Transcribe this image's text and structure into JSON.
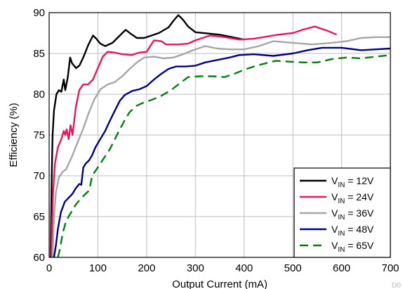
{
  "chart_data": {
    "type": "line",
    "title": "",
    "xlabel": "Output Current (mA)",
    "ylabel": "Efficiency (%)",
    "xlim": [
      0,
      700
    ],
    "ylim": [
      60,
      90
    ],
    "xticks": [
      0,
      100,
      200,
      300,
      400,
      500,
      600,
      700
    ],
    "yticks": [
      60,
      65,
      70,
      75,
      80,
      85,
      90
    ],
    "grid": true,
    "legend_position": "bottom-right",
    "watermark": "D0",
    "series": [
      {
        "name": "VIN = 12V",
        "legend_main": "V",
        "legend_sub": "IN",
        "legend_rest": " = 12V",
        "color": "#000000",
        "dash": "solid",
        "points": [
          [
            3,
            60
          ],
          [
            5,
            69
          ],
          [
            7,
            75
          ],
          [
            10,
            78
          ],
          [
            15,
            80
          ],
          [
            20,
            80.5
          ],
          [
            25,
            80.3
          ],
          [
            30,
            81.8
          ],
          [
            33,
            80.5
          ],
          [
            38,
            82
          ],
          [
            43,
            84.5
          ],
          [
            47,
            83.8
          ],
          [
            55,
            83.2
          ],
          [
            62,
            83.5
          ],
          [
            70,
            84.5
          ],
          [
            80,
            86
          ],
          [
            90,
            87.2
          ],
          [
            97,
            86.8
          ],
          [
            105,
            86.2
          ],
          [
            115,
            85.9
          ],
          [
            130,
            86.3
          ],
          [
            145,
            87.2
          ],
          [
            157,
            87.9
          ],
          [
            170,
            87.3
          ],
          [
            180,
            86.9
          ],
          [
            195,
            86.9
          ],
          [
            210,
            87.2
          ],
          [
            225,
            87.5
          ],
          [
            245,
            88.2
          ],
          [
            255,
            89
          ],
          [
            265,
            89.7
          ],
          [
            275,
            89.1
          ],
          [
            285,
            88.3
          ],
          [
            300,
            87.6
          ],
          [
            350,
            87.3
          ],
          [
            400,
            86.7
          ]
        ]
      },
      {
        "name": "VIN = 24V",
        "legend_main": "V",
        "legend_sub": "IN",
        "legend_rest": " = 24V",
        "color": "#e8175d",
        "dash": "solid",
        "points": [
          [
            4,
            60
          ],
          [
            8,
            68
          ],
          [
            12,
            71.5
          ],
          [
            18,
            73.5
          ],
          [
            25,
            74.5
          ],
          [
            30,
            75.5
          ],
          [
            33,
            75
          ],
          [
            36,
            75.7
          ],
          [
            40,
            74.5
          ],
          [
            44,
            76.2
          ],
          [
            48,
            75
          ],
          [
            55,
            78.5
          ],
          [
            62,
            80.5
          ],
          [
            70,
            81.2
          ],
          [
            80,
            81.2
          ],
          [
            90,
            81.8
          ],
          [
            100,
            83.2
          ],
          [
            110,
            84.6
          ],
          [
            120,
            85.2
          ],
          [
            135,
            85.1
          ],
          [
            150,
            84.9
          ],
          [
            170,
            84.8
          ],
          [
            185,
            85.1
          ],
          [
            200,
            85.2
          ],
          [
            215,
            86.6
          ],
          [
            230,
            86.5
          ],
          [
            240,
            86.1
          ],
          [
            265,
            86.1
          ],
          [
            285,
            86.2
          ],
          [
            300,
            86.6
          ],
          [
            330,
            87.2
          ],
          [
            360,
            87
          ],
          [
            390,
            86.7
          ],
          [
            420,
            86.8
          ],
          [
            450,
            87.1
          ],
          [
            470,
            87.3
          ],
          [
            500,
            87.5
          ],
          [
            520,
            87.9
          ],
          [
            545,
            88.3
          ],
          [
            570,
            87.8
          ],
          [
            590,
            87.3
          ]
        ]
      },
      {
        "name": "VIN = 36V",
        "legend_main": "V",
        "legend_sub": "IN",
        "legend_rest": " = 36V",
        "color": "#a6a6a6",
        "dash": "solid",
        "points": [
          [
            7,
            60
          ],
          [
            10,
            65
          ],
          [
            14,
            68
          ],
          [
            20,
            69.8
          ],
          [
            28,
            70.5
          ],
          [
            35,
            70.8
          ],
          [
            40,
            71.5
          ],
          [
            48,
            72.5
          ],
          [
            55,
            73.6
          ],
          [
            62,
            74.6
          ],
          [
            70,
            75.8
          ],
          [
            80,
            77.5
          ],
          [
            92,
            79.3
          ],
          [
            105,
            80.6
          ],
          [
            120,
            81.2
          ],
          [
            135,
            81.5
          ],
          [
            150,
            82.2
          ],
          [
            165,
            83.1
          ],
          [
            180,
            83.9
          ],
          [
            195,
            84.5
          ],
          [
            215,
            84.6
          ],
          [
            235,
            84.4
          ],
          [
            255,
            84.5
          ],
          [
            275,
            84.9
          ],
          [
            295,
            85.4
          ],
          [
            320,
            85.9
          ],
          [
            345,
            85.6
          ],
          [
            370,
            85.5
          ],
          [
            400,
            85.5
          ],
          [
            430,
            85.9
          ],
          [
            460,
            86.5
          ],
          [
            500,
            86.3
          ],
          [
            540,
            86.1
          ],
          [
            580,
            86.3
          ],
          [
            610,
            86.5
          ],
          [
            640,
            86.9
          ],
          [
            670,
            87
          ],
          [
            700,
            87
          ]
        ]
      },
      {
        "name": "VIN = 48V",
        "legend_main": "V",
        "legend_sub": "IN",
        "legend_rest": " = 48V",
        "color": "#000080",
        "dash": "solid",
        "points": [
          [
            10,
            60
          ],
          [
            14,
            61.5
          ],
          [
            18,
            63.5
          ],
          [
            24,
            65.5
          ],
          [
            32,
            66.8
          ],
          [
            40,
            67.3
          ],
          [
            48,
            67.8
          ],
          [
            55,
            68.5
          ],
          [
            62,
            69
          ],
          [
            66,
            68.9
          ],
          [
            70,
            71
          ],
          [
            75,
            71.5
          ],
          [
            82,
            71.9
          ],
          [
            88,
            72.5
          ],
          [
            95,
            73.5
          ],
          [
            105,
            74.5
          ],
          [
            115,
            75.5
          ],
          [
            125,
            76.8
          ],
          [
            135,
            78
          ],
          [
            145,
            79.2
          ],
          [
            155,
            79.9
          ],
          [
            170,
            80.4
          ],
          [
            185,
            80.6
          ],
          [
            200,
            81
          ],
          [
            215,
            81.8
          ],
          [
            230,
            82.5
          ],
          [
            245,
            83.1
          ],
          [
            260,
            83.4
          ],
          [
            280,
            83.4
          ],
          [
            300,
            83.5
          ],
          [
            320,
            83.9
          ],
          [
            345,
            84.2
          ],
          [
            370,
            84.5
          ],
          [
            390,
            84.8
          ],
          [
            420,
            84.9
          ],
          [
            460,
            84.7
          ],
          [
            500,
            85
          ],
          [
            530,
            85.4
          ],
          [
            560,
            85.7
          ],
          [
            600,
            85.7
          ],
          [
            640,
            85.4
          ],
          [
            670,
            85.5
          ],
          [
            700,
            85.6
          ]
        ]
      },
      {
        "name": "VIN = 65V",
        "legend_main": "V",
        "legend_sub": "IN",
        "legend_rest": " = 65V",
        "color": "#00800a",
        "dash": "dashed",
        "points": [
          [
            18,
            60
          ],
          [
            22,
            61
          ],
          [
            28,
            63
          ],
          [
            35,
            64.5
          ],
          [
            45,
            65.5
          ],
          [
            55,
            66.5
          ],
          [
            65,
            67.2
          ],
          [
            75,
            67.8
          ],
          [
            82,
            68.2
          ],
          [
            85,
            69
          ],
          [
            88,
            70
          ],
          [
            95,
            70.6
          ],
          [
            105,
            71.5
          ],
          [
            115,
            72.4
          ],
          [
            125,
            73.3
          ],
          [
            135,
            74.5
          ],
          [
            145,
            75.7
          ],
          [
            155,
            76.8
          ],
          [
            165,
            77.8
          ],
          [
            180,
            78.6
          ],
          [
            195,
            79
          ],
          [
            210,
            79.3
          ],
          [
            230,
            79.8
          ],
          [
            250,
            80.5
          ],
          [
            265,
            81.2
          ],
          [
            285,
            82.1
          ],
          [
            310,
            82.2
          ],
          [
            335,
            82.2
          ],
          [
            360,
            82.1
          ],
          [
            380,
            82.5
          ],
          [
            400,
            83
          ],
          [
            425,
            83.5
          ],
          [
            445,
            83.8
          ],
          [
            465,
            84.1
          ],
          [
            490,
            84
          ],
          [
            520,
            83.9
          ],
          [
            550,
            83.9
          ],
          [
            580,
            84.3
          ],
          [
            610,
            84.5
          ],
          [
            640,
            84.4
          ],
          [
            670,
            84.6
          ],
          [
            700,
            84.8
          ]
        ]
      }
    ]
  }
}
